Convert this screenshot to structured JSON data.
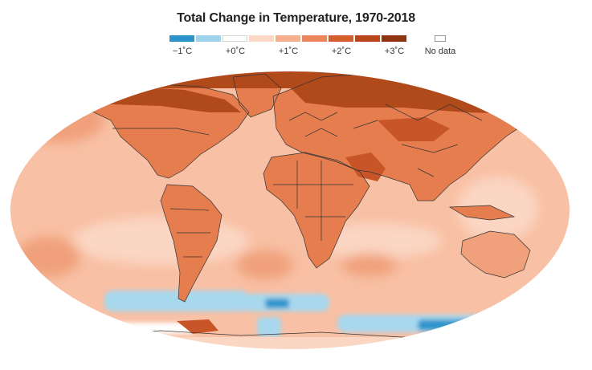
{
  "title": "Total Change in Temperature, 1970-2018",
  "legend": {
    "swatch_colors": [
      "#2a93c9",
      "#9fd3ea",
      "#ffffff",
      "#fcd9c6",
      "#f6ae8c",
      "#ec8559",
      "#d65e2c",
      "#b8481b",
      "#8e3412"
    ],
    "ticks": [
      "−1˚C",
      "+0˚C",
      "+1˚C",
      "+2˚C",
      "+3˚C"
    ],
    "no_data_label": "No data"
  },
  "colors": {
    "ocean_base": "#f8c0a4",
    "land_warm": "#e57d4e",
    "arctic": "#b14a1b",
    "southern_ocean_cool": "#a8d8ee",
    "antarctic_cold": "#2f95cc",
    "border_lines": "#333333"
  }
}
